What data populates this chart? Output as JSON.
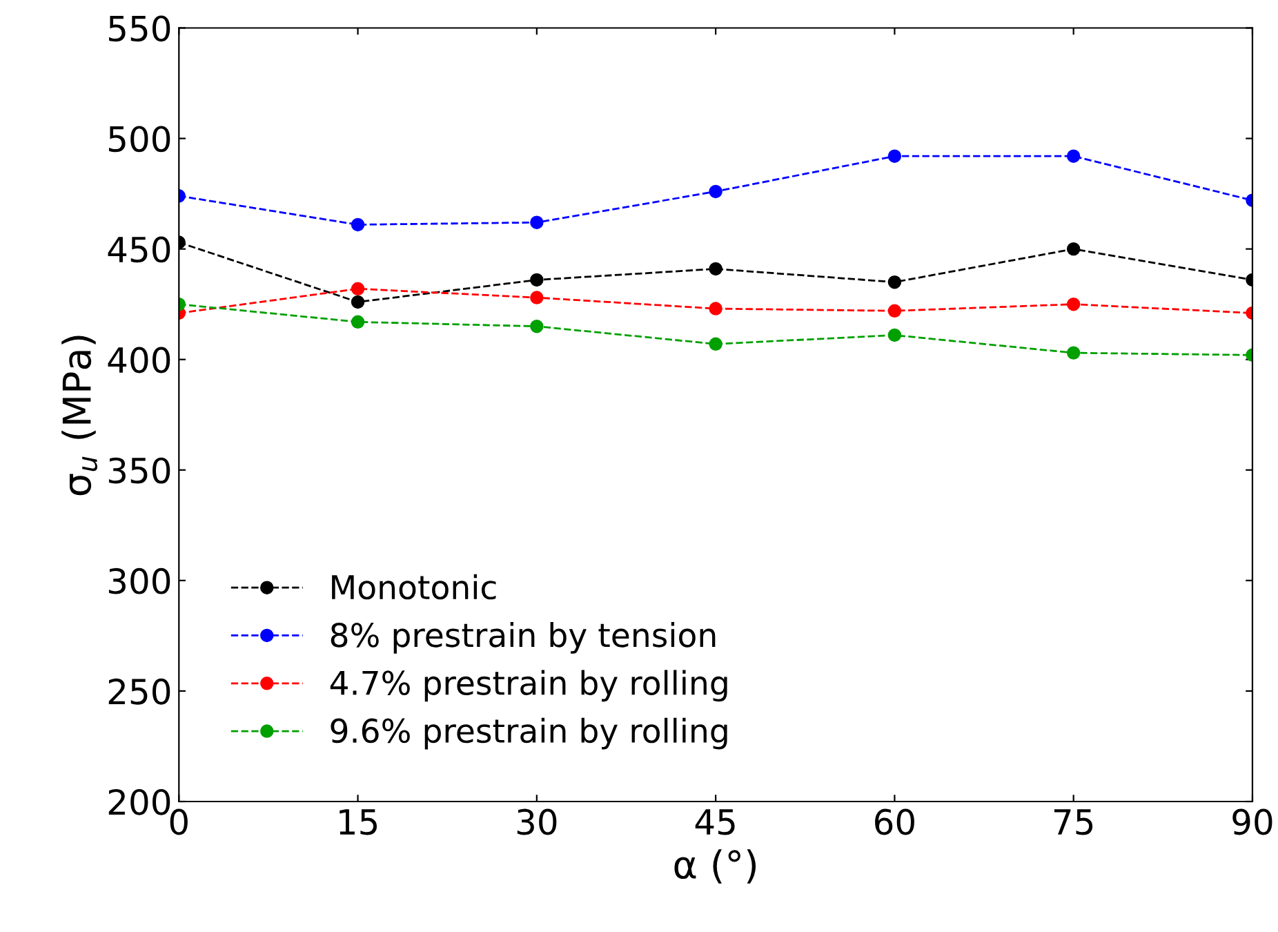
{
  "chart_data": {
    "type": "line",
    "xlabel": "α (°)",
    "ylabel": "σ$_{u}$ (MPa)",
    "x": [
      0,
      15,
      30,
      45,
      60,
      75,
      90
    ],
    "xlim": [
      0,
      90
    ],
    "xticks": [
      0,
      15,
      30,
      45,
      60,
      75,
      90
    ],
    "ylim": [
      200,
      550
    ],
    "yticks": [
      200,
      250,
      300,
      350,
      400,
      450,
      500,
      550
    ],
    "grid": false,
    "legend": "bottom left",
    "marker": "circle",
    "line_style": "dashed",
    "series": [
      {
        "name": "Monotonic",
        "color": "#000000",
        "values": [
          453,
          426,
          436,
          441,
          435,
          450,
          436
        ]
      },
      {
        "name": "8% prestrain by tension",
        "color": "#0000ff",
        "values": [
          474,
          461,
          462,
          476,
          492,
          492,
          472
        ]
      },
      {
        "name": "4.7% prestrain by rolling",
        "color": "#ff0000",
        "values": [
          421,
          432,
          428,
          423,
          422,
          425,
          421
        ]
      },
      {
        "name": "9.6% prestrain by rolling",
        "color": "#00a000",
        "values": [
          425,
          417,
          415,
          407,
          411,
          403,
          402
        ]
      }
    ]
  }
}
